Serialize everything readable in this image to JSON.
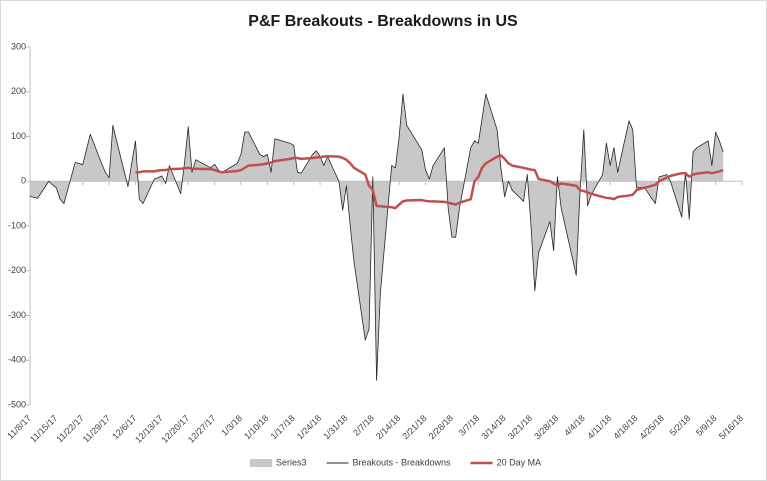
{
  "chart_data": {
    "type": "line",
    "title": "P&F Breakouts - Breakdowns in US",
    "x": [
      "11/8/17",
      "11/9/17",
      "11/10/17",
      "11/13/17",
      "11/14/17",
      "11/15/17",
      "11/16/17",
      "11/17/17",
      "11/20/17",
      "11/21/17",
      "11/22/17",
      "11/24/17",
      "11/27/17",
      "11/28/17",
      "11/29/17",
      "11/30/17",
      "12/1/17",
      "12/4/17",
      "12/5/17",
      "12/6/17",
      "12/7/17",
      "12/8/17",
      "12/11/17",
      "12/12/17",
      "12/13/17",
      "12/14/17",
      "12/15/17",
      "12/18/17",
      "12/19/17",
      "12/20/17",
      "12/21/17",
      "12/22/17",
      "12/26/17",
      "12/27/17",
      "12/28/17",
      "12/29/17",
      "1/2/18",
      "1/3/18",
      "1/4/18",
      "1/5/18",
      "1/8/18",
      "1/9/18",
      "1/10/18",
      "1/11/18",
      "1/12/18",
      "1/16/18",
      "1/17/18",
      "1/18/18",
      "1/19/18",
      "1/22/18",
      "1/23/18",
      "1/24/18",
      "1/25/18",
      "1/26/18",
      "1/29/18",
      "1/30/18",
      "1/31/18",
      "2/1/18",
      "2/2/18",
      "2/5/18",
      "2/6/18",
      "2/7/18",
      "2/8/18",
      "2/9/18",
      "2/12/18",
      "2/13/18",
      "2/14/18",
      "2/15/18",
      "2/16/18",
      "2/20/18",
      "2/21/18",
      "2/22/18",
      "2/23/18",
      "2/26/18",
      "2/27/18",
      "2/28/18",
      "3/1/18",
      "3/2/18",
      "3/5/18",
      "3/6/18",
      "3/7/18",
      "3/8/18",
      "3/9/18",
      "3/12/18",
      "3/13/18",
      "3/14/18",
      "3/15/18",
      "3/16/18",
      "3/19/18",
      "3/20/18",
      "3/21/18",
      "3/22/18",
      "3/23/18",
      "3/26/18",
      "3/27/18",
      "3/28/18",
      "3/29/18",
      "4/2/18",
      "4/3/18",
      "4/4/18",
      "4/5/18",
      "4/6/18",
      "4/9/18",
      "4/10/18",
      "4/11/18",
      "4/12/18",
      "4/13/18",
      "4/16/18",
      "4/17/18",
      "4/18/18",
      "4/19/18",
      "4/20/18",
      "4/23/18",
      "4/24/18",
      "4/25/18",
      "4/26/18",
      "4/27/18",
      "4/30/18",
      "5/1/18",
      "5/2/18",
      "5/3/18",
      "5/4/18",
      "5/7/18",
      "5/8/18",
      "5/9/18",
      "5/10/18",
      "5/11/18"
    ],
    "series": [
      {
        "name": "Series3",
        "kind": "area",
        "color": "#c8c8c8",
        "values": [
          -33,
          -36,
          -38,
          0,
          -8,
          -15,
          -40,
          -50,
          42,
          40,
          37,
          105,
          40,
          20,
          8,
          125,
          90,
          -12,
          40,
          90,
          -40,
          -50,
          5,
          8,
          12,
          -5,
          35,
          -28,
          40,
          122,
          20,
          48,
          30,
          38,
          25,
          20,
          40,
          60,
          110,
          110,
          60,
          55,
          60,
          20,
          95,
          85,
          80,
          20,
          18,
          60,
          68,
          55,
          35,
          55,
          0,
          -65,
          -10,
          -100,
          -180,
          -355,
          -330,
          10,
          -445,
          -250,
          35,
          30,
          100,
          195,
          125,
          70,
          25,
          5,
          35,
          75,
          -60,
          -125,
          -125,
          -60,
          75,
          90,
          85,
          140,
          195,
          115,
          30,
          -35,
          0,
          -20,
          -45,
          15,
          -100,
          -245,
          -160,
          -90,
          -155,
          10,
          -60,
          -210,
          -25,
          115,
          -55,
          -30,
          15,
          85,
          35,
          75,
          20,
          135,
          115,
          -15,
          -14,
          -13,
          -50,
          10,
          12,
          15,
          0,
          -80,
          20,
          -85,
          65,
          75,
          90,
          35,
          110,
          90,
          65
        ]
      },
      {
        "name": "Breakouts - Breakdowns",
        "kind": "line",
        "color": "#262626",
        "values": [
          -33,
          -36,
          -38,
          0,
          -8,
          -15,
          -40,
          -50,
          42,
          40,
          37,
          105,
          40,
          20,
          8,
          125,
          90,
          -12,
          40,
          90,
          -40,
          -50,
          5,
          8,
          12,
          -5,
          35,
          -28,
          40,
          122,
          20,
          48,
          30,
          38,
          25,
          20,
          40,
          60,
          110,
          110,
          60,
          55,
          60,
          20,
          95,
          85,
          80,
          20,
          18,
          60,
          68,
          55,
          35,
          55,
          0,
          -65,
          -10,
          -100,
          -180,
          -355,
          -330,
          10,
          -445,
          -250,
          35,
          30,
          100,
          195,
          125,
          70,
          25,
          5,
          35,
          75,
          -60,
          -125,
          -125,
          -60,
          75,
          90,
          85,
          140,
          195,
          115,
          30,
          -35,
          0,
          -20,
          -45,
          15,
          -100,
          -245,
          -160,
          -90,
          -155,
          10,
          -60,
          -210,
          -25,
          115,
          -55,
          -30,
          15,
          85,
          35,
          75,
          20,
          135,
          115,
          -15,
          -14,
          -13,
          -50,
          10,
          12,
          15,
          0,
          -80,
          20,
          -85,
          65,
          75,
          90,
          35,
          110,
          90,
          65
        ]
      },
      {
        "name": "20 Day MA",
        "kind": "line",
        "color": "#c0504d",
        "values": [
          null,
          null,
          null,
          null,
          null,
          null,
          null,
          null,
          null,
          null,
          null,
          null,
          null,
          null,
          null,
          null,
          null,
          null,
          null,
          20,
          20,
          22,
          22,
          24,
          25,
          25,
          27,
          28,
          29,
          30,
          28,
          28,
          27,
          25,
          22,
          20,
          23,
          25,
          30,
          35,
          37,
          38,
          40,
          42,
          45,
          50,
          52,
          52,
          50,
          52,
          53,
          54,
          55,
          56,
          55,
          52,
          48,
          40,
          30,
          15,
          -10,
          -20,
          -55,
          -56,
          -58,
          -60,
          -52,
          -45,
          -43,
          -42,
          -44,
          -45,
          -45,
          -46,
          -48,
          -50,
          -52,
          -48,
          -40,
          0,
          10,
          30,
          40,
          55,
          58,
          50,
          40,
          35,
          30,
          28,
          26,
          25,
          5,
          0,
          -5,
          -10,
          -5,
          -10,
          -20,
          -22,
          -25,
          -28,
          -35,
          -37,
          -38,
          -40,
          -35,
          -32,
          -30,
          -20,
          -17,
          -15,
          -8,
          0,
          4,
          8,
          12,
          18,
          18,
          10,
          15,
          17,
          20,
          18,
          20,
          22,
          25
        ]
      }
    ],
    "xlim": [
      "11/8/17",
      "5/16/18"
    ],
    "xticks": [
      "11/8/17",
      "11/15/17",
      "11/22/17",
      "11/29/17",
      "12/6/17",
      "12/13/17",
      "12/20/17",
      "12/27/17",
      "1/3/18",
      "1/10/18",
      "1/17/18",
      "1/24/18",
      "1/31/18",
      "2/7/18",
      "2/14/18",
      "2/21/18",
      "2/28/18",
      "3/7/18",
      "3/14/18",
      "3/21/18",
      "3/28/18",
      "4/4/18",
      "4/11/18",
      "4/18/18",
      "4/25/18",
      "5/2/18",
      "5/9/18",
      "5/16/18"
    ],
    "ylim": [
      -500,
      300
    ],
    "yticks": [
      -500,
      -400,
      -300,
      -200,
      -100,
      0,
      100,
      200,
      300
    ],
    "legend": "bottom"
  }
}
